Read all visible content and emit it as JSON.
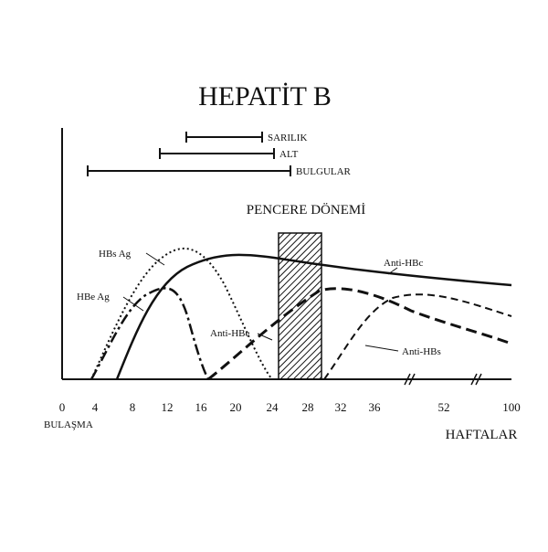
{
  "title": "HEPATİT B",
  "bars": [
    {
      "label": "SARILIK"
    },
    {
      "label": "ALT"
    },
    {
      "label": "BULGULAR"
    }
  ],
  "window_label": "PENCERE DÖNEMİ",
  "curves": [
    "HBs Ag",
    "HBe Ag",
    "Anti-HBe",
    "Anti-HBc",
    "Anti-HBs"
  ],
  "x_ticks": [
    "0",
    "4",
    "8",
    "12",
    "16",
    "20",
    "24",
    "28",
    "32",
    "36",
    "52",
    "100"
  ],
  "x_start_label": "BULAŞMA",
  "x_axis_label": "HAFTALAR"
}
